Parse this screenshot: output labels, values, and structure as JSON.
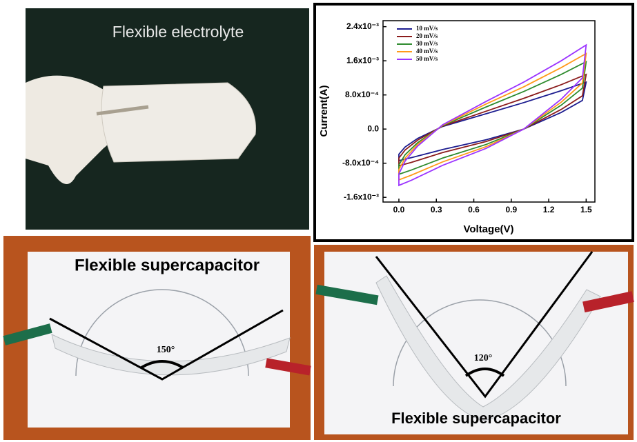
{
  "panels": {
    "electrolyte_photo": {
      "caption": "Flexible electrolyte"
    },
    "bent_150_photo": {
      "caption": "Flexible supercapacitor",
      "angle": "150°"
    },
    "bent_120_photo": {
      "caption": "Flexible supercapacitor",
      "angle": "120°"
    }
  },
  "chart_data": {
    "type": "line",
    "x_label": "Voltage(V)",
    "y_label": "Current(A)",
    "xlim": [
      -0.127,
      1.57
    ],
    "ylim": [
      -0.00171,
      0.00254
    ],
    "xticks": [
      {
        "value": 0,
        "label": "0.0"
      },
      0.3,
      0.6,
      0.9,
      1.2,
      1.5
    ],
    "yticks": [
      {
        "value": -0.0016,
        "label": "-1.6x10⁻³"
      },
      {
        "value": -0.0008,
        "label": "-8.0x10⁻⁴"
      },
      {
        "value": 0,
        "label": "0.0"
      },
      {
        "value": 0.0008,
        "label": "8.0x10⁻⁴"
      },
      {
        "value": 0.0016,
        "label": "1.6x10⁻³"
      },
      {
        "value": 0.0024,
        "label": "2.4x10⁻³"
      }
    ],
    "legend": "upper left",
    "x": [
      0,
      0.05,
      0.15,
      0.35,
      0.7,
      1.0,
      1.3,
      1.5,
      1.47,
      1.3,
      1.0,
      0.7,
      0.35,
      0.1,
      0
    ],
    "series": [
      {
        "name": "10 mV/s",
        "color": "#1c1c8f",
        "values": [
          -0.00059,
          -0.00042,
          -0.00022,
          6e-05,
          0.00036,
          0.00062,
          0.0009,
          0.0011,
          0.00067,
          0.00039,
          0,
          -0.00025,
          -0.00048,
          -0.00067,
          -0.00074
        ]
      },
      {
        "name": "20 mV/s",
        "color": "#8b1c1c",
        "values": [
          -0.00068,
          -0.00049,
          -0.00026,
          7e-05,
          0.00042,
          0.00072,
          0.00104,
          0.00128,
          0.00078,
          0.00046,
          0,
          -0.00029,
          -0.00055,
          -0.00078,
          -0.00086
        ]
      },
      {
        "name": "30 mV/s",
        "color": "#2e8b2e",
        "values": [
          -0.00084,
          -0.0006,
          -0.00032,
          8e-05,
          0.00052,
          0.00088,
          0.00128,
          0.00158,
          0.00096,
          0.00056,
          0,
          -0.00036,
          -0.00068,
          -0.00096,
          -0.00106
        ]
      },
      {
        "name": "40 mV/s",
        "color": "#ff9a1a",
        "values": [
          -0.00095,
          -0.00068,
          -0.00036,
          9e-05,
          0.00059,
          0.00099,
          0.00144,
          0.00177,
          0.00108,
          0.00063,
          0,
          -0.00041,
          -0.00077,
          -0.00108,
          -0.00119
        ]
      },
      {
        "name": "50 mV/s",
        "color": "#9b33ff",
        "values": [
          -0.00105,
          -0.00075,
          -0.0004,
          0.0001,
          0.00065,
          0.0011,
          0.0016,
          0.00197,
          0.0012,
          0.0007,
          0,
          -0.00045,
          -0.00085,
          -0.0012,
          -0.00132
        ]
      }
    ]
  }
}
